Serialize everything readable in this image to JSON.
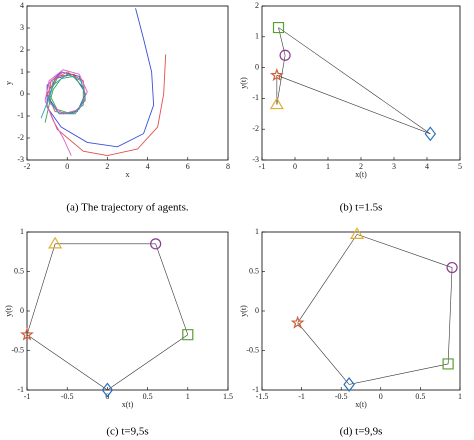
{
  "chart_data": [
    {
      "type": "line",
      "caption": "(a) The trajectory of agents.",
      "xlabel": "x",
      "ylabel": "y",
      "xlim": [
        -2,
        8
      ],
      "ylim": [
        -3,
        4
      ],
      "xticks": [
        -2,
        0,
        2,
        4,
        6,
        8
      ],
      "yticks": [
        -3,
        -2,
        -1,
        0,
        1,
        2,
        3,
        4
      ],
      "series": [
        {
          "color": "#3b4fd8",
          "x": [
            3.4,
            3.8,
            4.2,
            4.3,
            3.8,
            2.5,
            1,
            -0.3,
            -1,
            -1,
            -0.3,
            0.6,
            0.9,
            0.5,
            -0.4,
            -0.9,
            -0.6,
            0.3,
            0.8
          ],
          "values": [
            3.9,
            2.5,
            1,
            -0.5,
            -1.8,
            -2.4,
            -2.2,
            -1.5,
            -0.6,
            0.4,
            1,
            0.8,
            0,
            -0.8,
            -0.9,
            -0.2,
            0.7,
            0.9,
            0.2
          ]
        },
        {
          "color": "#e0504a",
          "x": [
            4.9,
            4.8,
            4.5,
            3.5,
            2,
            0.8,
            -0.5,
            -1,
            -0.8,
            0,
            0.8,
            0.9,
            0.3,
            -0.6,
            -1,
            -0.5,
            0.4
          ],
          "values": [
            1.8,
            0,
            -1.5,
            -2.5,
            -2.8,
            -2.6,
            -1.6,
            -0.5,
            0.6,
            1,
            0.6,
            -0.3,
            -0.9,
            -0.8,
            0,
            0.8,
            0.9
          ]
        },
        {
          "color": "#3aa14a",
          "x": [
            -1.1,
            -0.9,
            -0.7,
            -0.3,
            0.3,
            0.8,
            0.8,
            0.2,
            -0.5,
            -0.9,
            -0.5
          ],
          "values": [
            -1.3,
            -0.5,
            0.2,
            0.7,
            0.8,
            0.3,
            -0.5,
            -0.9,
            -0.7,
            0,
            0.7
          ]
        },
        {
          "color": "#d45fc8",
          "x": [
            0.2,
            -0.2,
            -0.7,
            -1.1,
            -0.9,
            -0.2,
            0.6,
            1,
            0.6,
            -0.2,
            -0.9,
            -0.9,
            -0.2
          ],
          "values": [
            -2.8,
            -2,
            -1.2,
            -0.3,
            0.6,
            1.1,
            0.9,
            0.1,
            -0.7,
            -0.9,
            -0.4,
            0.5,
            1
          ]
        },
        {
          "color": "#2aa7b0",
          "x": [
            -1.3,
            -1,
            -0.7,
            0,
            0.7,
            0.9,
            0.4,
            -0.4,
            -0.9,
            -0.7
          ],
          "values": [
            -1.1,
            -0.4,
            0.4,
            0.9,
            0.6,
            -0.2,
            -0.9,
            -0.9,
            -0.3,
            0.6
          ]
        }
      ]
    },
    {
      "type": "scatter",
      "caption": "(b) t=1.5s",
      "xlabel": "x(t)",
      "ylabel": "y(t)",
      "connect": true,
      "xlim": [
        -1,
        5
      ],
      "ylim": [
        -3,
        2
      ],
      "xticks": [
        -1,
        0,
        1,
        2,
        3,
        4,
        5
      ],
      "yticks": [
        -3,
        -2,
        -1,
        0,
        1,
        2
      ],
      "series": [
        {
          "color": "#8b3a8f",
          "marker": "circle",
          "x": [
            -0.3
          ],
          "values": [
            0.4
          ]
        },
        {
          "color": "#5a9e2f",
          "marker": "square",
          "x": [
            -0.5
          ],
          "values": [
            1.3
          ]
        },
        {
          "color": "#2a6fc0",
          "marker": "diamond",
          "x": [
            4.1
          ],
          "values": [
            -2.15
          ]
        },
        {
          "color": "#d0603a",
          "marker": "star",
          "x": [
            -0.55
          ],
          "values": [
            -0.25
          ]
        },
        {
          "color": "#e0b030",
          "marker": "triangle",
          "x": [
            -0.55
          ],
          "values": [
            -1.2
          ]
        }
      ]
    },
    {
      "type": "scatter",
      "caption": "(c) t=9,5s",
      "xlabel": "x(t)",
      "ylabel": "y(t)",
      "connect": true,
      "xlim": [
        -1,
        1.5
      ],
      "ylim": [
        -1,
        1
      ],
      "xticks": [
        -1,
        -0.5,
        0,
        0.5,
        1,
        1.5
      ],
      "yticks": [
        -1,
        -0.5,
        0,
        0.5,
        1
      ],
      "series": [
        {
          "color": "#8b3a8f",
          "marker": "circle",
          "x": [
            0.6
          ],
          "values": [
            0.85
          ]
        },
        {
          "color": "#5a9e2f",
          "marker": "square",
          "x": [
            1
          ],
          "values": [
            -0.3
          ]
        },
        {
          "color": "#2a6fc0",
          "marker": "diamond",
          "x": [
            0
          ],
          "values": [
            -1
          ]
        },
        {
          "color": "#d0603a",
          "marker": "star",
          "x": [
            -1
          ],
          "values": [
            -0.3
          ]
        },
        {
          "color": "#e0b030",
          "marker": "triangle",
          "x": [
            -0.65
          ],
          "values": [
            0.85
          ]
        }
      ]
    },
    {
      "type": "scatter",
      "caption": "(d) t=9,9s",
      "xlabel": "x(t)",
      "ylabel": "y(t)",
      "connect": true,
      "xlim": [
        -1.5,
        1
      ],
      "ylim": [
        -1,
        1
      ],
      "xticks": [
        -1.5,
        -1,
        -0.5,
        0,
        0.5,
        1
      ],
      "yticks": [
        -1,
        -0.5,
        0,
        0.5,
        1
      ],
      "series": [
        {
          "color": "#8b3a8f",
          "marker": "circle",
          "x": [
            0.9
          ],
          "values": [
            0.55
          ]
        },
        {
          "color": "#5a9e2f",
          "marker": "square",
          "x": [
            0.85
          ],
          "values": [
            -0.67
          ]
        },
        {
          "color": "#2a6fc0",
          "marker": "diamond",
          "x": [
            -0.4
          ],
          "values": [
            -0.93
          ]
        },
        {
          "color": "#d0603a",
          "marker": "star",
          "x": [
            -1.05
          ],
          "values": [
            -0.15
          ]
        },
        {
          "color": "#e0b030",
          "marker": "triangle",
          "x": [
            -0.3
          ],
          "values": [
            0.97
          ]
        }
      ]
    }
  ]
}
